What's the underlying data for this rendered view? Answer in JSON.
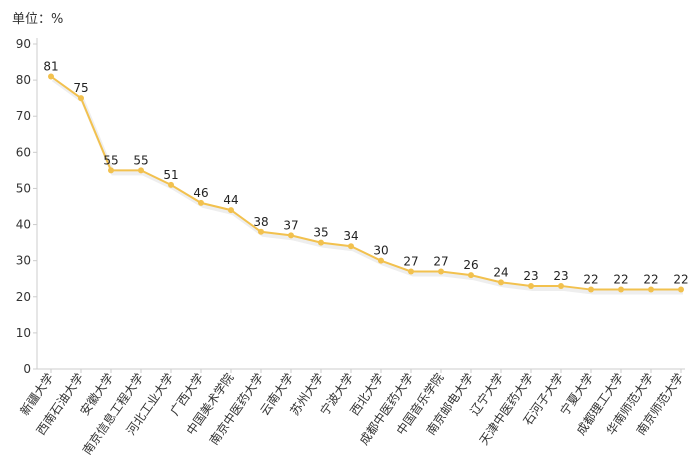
{
  "unit_label": "单位：%",
  "chart_data": {
    "type": "line",
    "categories": [
      "新疆大学",
      "西南石油大学",
      "安徽大学",
      "南京信息工程大学",
      "河北工业大学",
      "广西大学",
      "中国美术学院",
      "南京中医药大学",
      "云南大学",
      "苏州大学",
      "宁波大学",
      "西北大学",
      "成都中医药大学",
      "中国音乐学院",
      "南京邮电大学",
      "辽宁大学",
      "天津中医药大学",
      "石河子大学",
      "宁夏大学",
      "成都理工大学",
      "华南师范大学",
      "南京师范大学"
    ],
    "values": [
      81,
      75,
      55,
      55,
      51,
      46,
      44,
      38,
      37,
      35,
      34,
      30,
      27,
      27,
      26,
      24,
      23,
      23,
      22,
      22,
      22,
      22
    ],
    "data_labels": [
      "81",
      "75",
      "55",
      "55",
      "51",
      "46",
      "44",
      "38",
      "37",
      "35",
      "34",
      "30",
      "27",
      "27",
      "26",
      "24",
      "23",
      "23",
      "22",
      "22",
      "22",
      "22"
    ],
    "ylim": [
      0,
      90
    ],
    "yticks": [
      "0",
      "10",
      "20",
      "30",
      "40",
      "50",
      "60",
      "70",
      "80",
      "90"
    ],
    "grid": false,
    "colors": {
      "line": "#F2C14E",
      "axis": "#cccccc",
      "shadow": "#eeeeee"
    }
  }
}
